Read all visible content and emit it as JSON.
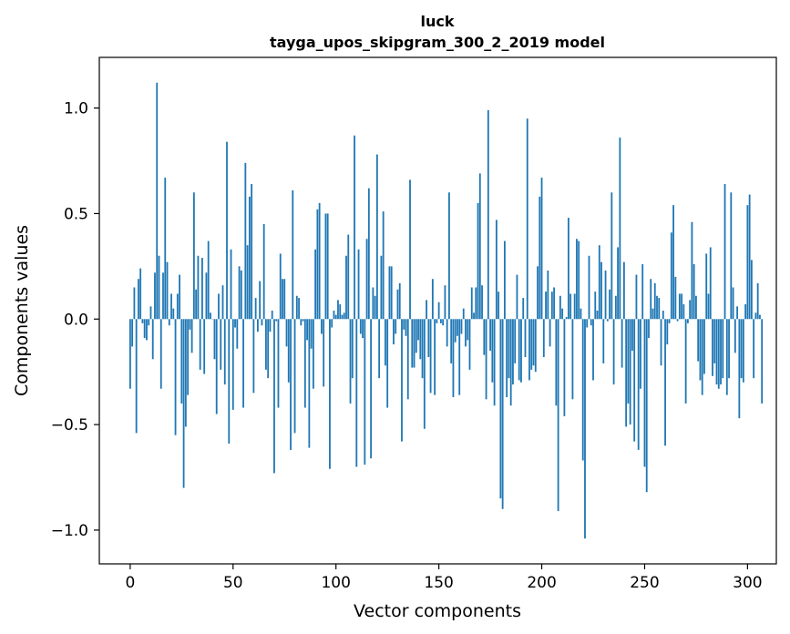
{
  "chart_data": {
    "type": "bar",
    "title": "luck",
    "subtitle": "tayga_upos_skipgram_300_2_2019 model",
    "xlabel": "Vector components",
    "ylabel": "Components values",
    "xlim": [
      -15,
      314
    ],
    "ylim": [
      -1.16,
      1.24
    ],
    "grid": false,
    "legend": "none",
    "bar_color": "#1f77b4",
    "x_ticks": [
      {
        "value": 0,
        "label": "0"
      },
      {
        "value": 50,
        "label": "50"
      },
      {
        "value": 100,
        "label": "100"
      },
      {
        "value": 150,
        "label": "150"
      },
      {
        "value": 200,
        "label": "200"
      },
      {
        "value": 250,
        "label": "250"
      },
      {
        "value": 300,
        "label": "300"
      }
    ],
    "y_ticks": [
      {
        "value": -1.0,
        "label": "−1.0"
      },
      {
        "value": -0.5,
        "label": "−0.5"
      },
      {
        "value": 0.0,
        "label": "0.0"
      },
      {
        "value": 0.5,
        "label": "0.5"
      },
      {
        "value": 1.0,
        "label": "1.0"
      }
    ],
    "values": [
      -0.33,
      -0.13,
      0.15,
      -0.54,
      0.19,
      0.24,
      -0.02,
      -0.09,
      -0.1,
      -0.03,
      0.06,
      -0.19,
      0.22,
      1.12,
      0.3,
      -0.33,
      0.22,
      0.67,
      0.27,
      -0.03,
      0.12,
      0.05,
      -0.55,
      0.12,
      0.21,
      -0.4,
      -0.8,
      -0.51,
      -0.36,
      -0.05,
      -0.16,
      0.6,
      0.14,
      0.3,
      -0.24,
      0.29,
      -0.26,
      0.22,
      0.37,
      0.03,
      0.0,
      -0.19,
      -0.45,
      0.12,
      -0.24,
      0.16,
      -0.31,
      0.84,
      -0.59,
      0.33,
      -0.43,
      -0.04,
      -0.14,
      0.25,
      0.23,
      -0.42,
      0.74,
      0.35,
      0.58,
      0.64,
      -0.35,
      0.1,
      -0.06,
      0.18,
      -0.03,
      0.45,
      -0.24,
      -0.28,
      -0.06,
      0.04,
      -0.73,
      -0.01,
      -0.42,
      0.31,
      0.19,
      0.19,
      -0.13,
      -0.3,
      -0.62,
      0.61,
      -0.54,
      0.11,
      0.1,
      -0.03,
      -0.01,
      -0.42,
      -0.1,
      -0.61,
      -0.14,
      -0.33,
      0.33,
      0.52,
      0.55,
      -0.07,
      -0.32,
      0.5,
      0.5,
      -0.71,
      -0.04,
      0.04,
      0.02,
      0.09,
      0.07,
      0.02,
      0.03,
      0.3,
      0.4,
      -0.4,
      -0.28,
      0.87,
      -0.7,
      0.33,
      -0.07,
      -0.09,
      -0.69,
      0.38,
      0.62,
      -0.66,
      0.15,
      0.11,
      0.78,
      -0.28,
      0.3,
      0.51,
      -0.22,
      -0.42,
      0.25,
      0.25,
      -0.12,
      -0.07,
      0.14,
      0.17,
      -0.58,
      -0.05,
      -0.08,
      -0.38,
      0.66,
      -0.23,
      -0.23,
      -0.16,
      -0.1,
      -0.19,
      -0.28,
      -0.52,
      0.09,
      -0.18,
      -0.35,
      0.19,
      -0.36,
      -0.02,
      0.08,
      -0.02,
      -0.03,
      0.16,
      -0.13,
      0.6,
      -0.21,
      -0.37,
      -0.11,
      -0.08,
      -0.36,
      -0.07,
      0.05,
      -0.13,
      -0.1,
      -0.24,
      0.15,
      0.03,
      0.15,
      0.55,
      0.69,
      0.16,
      -0.17,
      -0.38,
      0.99,
      -0.15,
      -0.3,
      -0.41,
      0.47,
      0.13,
      -0.85,
      -0.9,
      0.37,
      -0.37,
      -0.28,
      -0.41,
      -0.31,
      -0.21,
      0.21,
      -0.29,
      -0.3,
      0.1,
      -0.18,
      0.95,
      -0.29,
      -0.24,
      -0.22,
      -0.25,
      0.25,
      0.58,
      0.67,
      -0.18,
      0.13,
      0.23,
      -0.13,
      0.13,
      0.15,
      -0.41,
      -0.91,
      0.11,
      0.05,
      -0.46,
      0.01,
      0.48,
      0.12,
      -0.38,
      0.12,
      0.38,
      0.37,
      0.05,
      -0.67,
      -1.04,
      -0.04,
      0.3,
      -0.03,
      -0.29,
      0.13,
      0.04,
      0.35,
      0.27,
      -0.21,
      0.23,
      -0.01,
      0.14,
      0.6,
      -0.31,
      0.11,
      0.34,
      0.86,
      -0.23,
      0.27,
      -0.51,
      -0.4,
      -0.5,
      -0.15,
      -0.58,
      0.21,
      -0.62,
      -0.33,
      0.26,
      -0.7,
      -0.82,
      -0.09,
      0.19,
      0.05,
      0.17,
      0.11,
      0.1,
      -0.22,
      0.04,
      -0.6,
      -0.12,
      -0.02,
      0.41,
      0.54,
      0.2,
      -0.01,
      0.12,
      0.12,
      0.07,
      -0.4,
      -0.02,
      0.09,
      0.46,
      0.26,
      0.11,
      -0.2,
      -0.29,
      -0.36,
      -0.26,
      0.31,
      0.12,
      0.34,
      -0.27,
      -0.21,
      -0.31,
      -0.33,
      -0.31,
      -0.28,
      0.64,
      -0.36,
      -0.28,
      0.6,
      0.15,
      -0.16,
      0.06,
      -0.47,
      -0.28,
      -0.3,
      0.07,
      0.54,
      0.59,
      0.28,
      -0.28,
      0.03,
      0.17,
      0.02,
      -0.4
    ]
  }
}
